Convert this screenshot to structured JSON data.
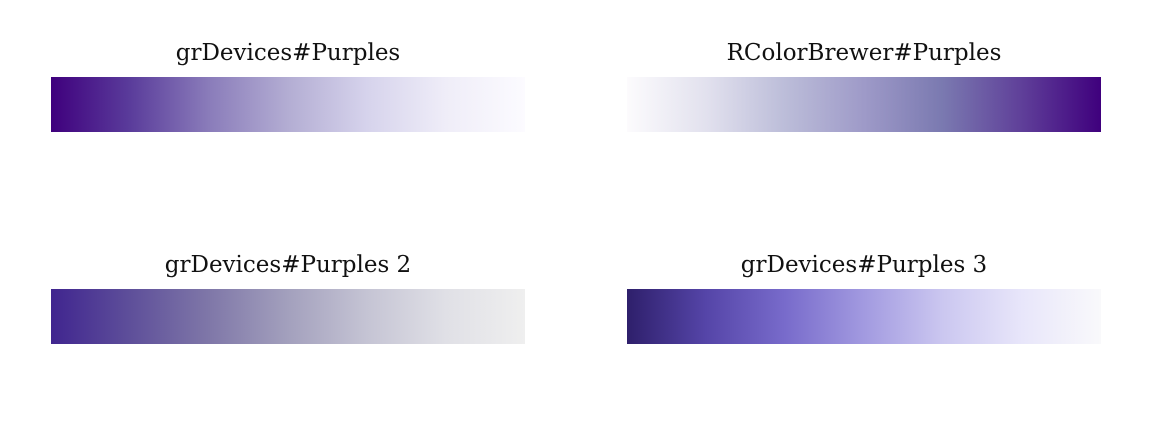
{
  "palettes": [
    {
      "title": "grDevices#Purples",
      "colors": [
        "#3f007d",
        "#5a3c9b",
        "#8a7cba",
        "#b3add3",
        "#d6d3ec",
        "#efedf8",
        "#fcfbff"
      ]
    },
    {
      "title": "RColorBrewer#Purples",
      "colors": [
        "#fcfbfd",
        "#e2e1ee",
        "#bcbdd9",
        "#9e9ac8",
        "#7a79b0",
        "#5f3f99",
        "#3f007d"
      ]
    },
    {
      "title": "grDevices#Purples 2",
      "colors": [
        "#40258f",
        "#5e4f9a",
        "#7f77a8",
        "#a3a0bd",
        "#c5c4d4",
        "#e0e0e6",
        "#efefef"
      ]
    },
    {
      "title": "grDevices#Purples 3",
      "colors": [
        "#2e1f6b",
        "#5545a8",
        "#786bcb",
        "#a29ae0",
        "#cbc7f0",
        "#e8e6fa",
        "#f9f9fb"
      ]
    }
  ]
}
